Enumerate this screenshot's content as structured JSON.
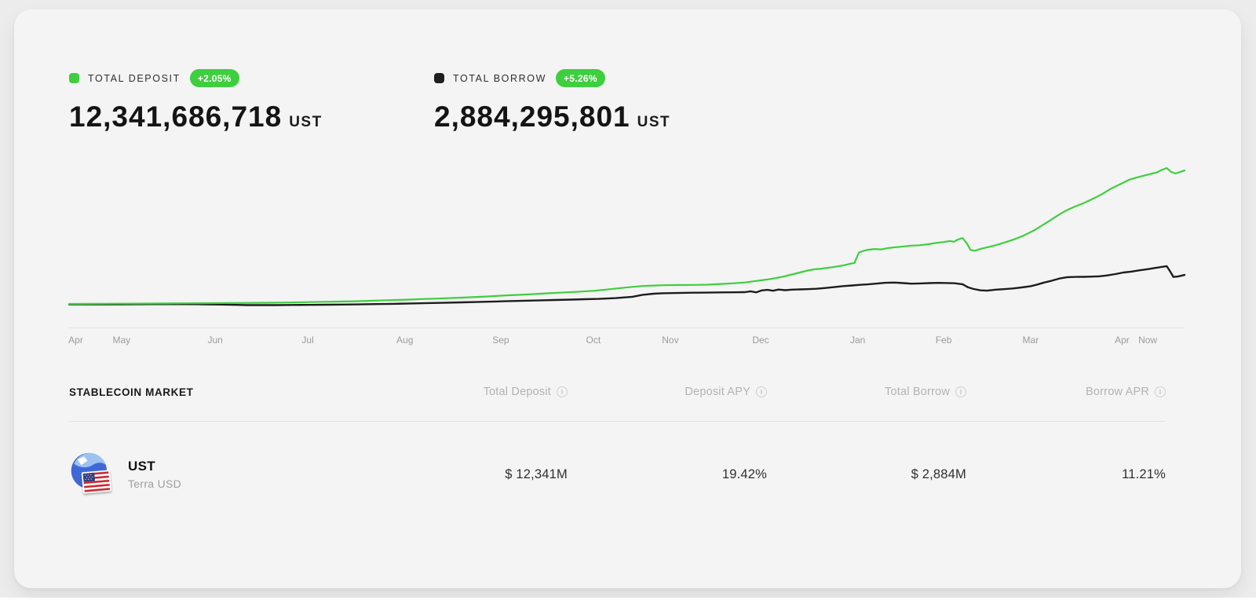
{
  "colors": {
    "green": "#3ecf3e",
    "line_black": "#1d1d1d",
    "badge_text": "#ffffff"
  },
  "header_stats": [
    {
      "legend": "TOTAL DEPOSIT",
      "change_badge": "+2.05%",
      "value": "12,341,686,718",
      "unit": "UST",
      "swatch_color": "#3ecf3e"
    },
    {
      "legend": "TOTAL BORROW",
      "change_badge": "+5.26%",
      "value": "2,884,295,801",
      "unit": "UST",
      "swatch_color": "#1f1f1f"
    }
  ],
  "chart_data": {
    "type": "line",
    "title": "Total Deposit vs Total Borrow over time",
    "y_unit": "millions of UST",
    "ylim": [
      0,
      13500
    ],
    "grid": false,
    "legend_position": "top-left",
    "x_axis_labels": [
      {
        "label": "Apr",
        "pos": 0.006
      },
      {
        "label": "May",
        "pos": 0.047
      },
      {
        "label": "Jun",
        "pos": 0.131
      },
      {
        "label": "Jul",
        "pos": 0.214
      },
      {
        "label": "Aug",
        "pos": 0.301
      },
      {
        "label": "Sep",
        "pos": 0.387
      },
      {
        "label": "Oct",
        "pos": 0.47
      },
      {
        "label": "Nov",
        "pos": 0.539
      },
      {
        "label": "Dec",
        "pos": 0.62
      },
      {
        "label": "Jan",
        "pos": 0.707
      },
      {
        "label": "Feb",
        "pos": 0.784
      },
      {
        "label": "Mar",
        "pos": 0.862
      },
      {
        "label": "Apr",
        "pos": 0.944
      },
      {
        "label": "Now",
        "pos": 0.967
      }
    ],
    "series": [
      {
        "name": "Total Deposit",
        "color": "#3ecf3e",
        "final_value_M": 12341,
        "points": [
          [
            0.0,
            255
          ],
          [
            0.015,
            260
          ],
          [
            0.03,
            268
          ],
          [
            0.044,
            275
          ],
          [
            0.06,
            285
          ],
          [
            0.075,
            292
          ],
          [
            0.09,
            300
          ],
          [
            0.105,
            310
          ],
          [
            0.12,
            318
          ],
          [
            0.131,
            326
          ],
          [
            0.145,
            338
          ],
          [
            0.16,
            350
          ],
          [
            0.175,
            365
          ],
          [
            0.19,
            380
          ],
          [
            0.205,
            400
          ],
          [
            0.214,
            420
          ],
          [
            0.228,
            445
          ],
          [
            0.242,
            470
          ],
          [
            0.256,
            500
          ],
          [
            0.27,
            540
          ],
          [
            0.285,
            590
          ],
          [
            0.302,
            640
          ],
          [
            0.315,
            690
          ],
          [
            0.33,
            740
          ],
          [
            0.345,
            800
          ],
          [
            0.36,
            860
          ],
          [
            0.375,
            930
          ],
          [
            0.387,
            1000
          ],
          [
            0.4,
            1070
          ],
          [
            0.415,
            1140
          ],
          [
            0.43,
            1220
          ],
          [
            0.445,
            1300
          ],
          [
            0.458,
            1370
          ],
          [
            0.47,
            1440
          ],
          [
            0.482,
            1560
          ],
          [
            0.495,
            1700
          ],
          [
            0.505,
            1800
          ],
          [
            0.514,
            1880
          ],
          [
            0.524,
            1920
          ],
          [
            0.533,
            1950
          ],
          [
            0.54,
            1960
          ],
          [
            0.55,
            1970
          ],
          [
            0.56,
            1980
          ],
          [
            0.572,
            2000
          ],
          [
            0.584,
            2060
          ],
          [
            0.596,
            2130
          ],
          [
            0.606,
            2200
          ],
          [
            0.613,
            2300
          ],
          [
            0.62,
            2390
          ],
          [
            0.627,
            2480
          ],
          [
            0.634,
            2600
          ],
          [
            0.641,
            2750
          ],
          [
            0.648,
            2920
          ],
          [
            0.655,
            3100
          ],
          [
            0.662,
            3280
          ],
          [
            0.668,
            3390
          ],
          [
            0.673,
            3430
          ],
          [
            0.678,
            3500
          ],
          [
            0.684,
            3580
          ],
          [
            0.69,
            3680
          ],
          [
            0.695,
            3760
          ],
          [
            0.7,
            3890
          ],
          [
            0.704,
            3960
          ],
          [
            0.708,
            4900
          ],
          [
            0.712,
            5060
          ],
          [
            0.716,
            5160
          ],
          [
            0.722,
            5230
          ],
          [
            0.728,
            5190
          ],
          [
            0.734,
            5310
          ],
          [
            0.741,
            5390
          ],
          [
            0.748,
            5460
          ],
          [
            0.755,
            5530
          ],
          [
            0.762,
            5570
          ],
          [
            0.77,
            5660
          ],
          [
            0.778,
            5790
          ],
          [
            0.784,
            5860
          ],
          [
            0.79,
            5960
          ],
          [
            0.793,
            5880
          ],
          [
            0.797,
            6090
          ],
          [
            0.801,
            6230
          ],
          [
            0.805,
            5710
          ],
          [
            0.808,
            5160
          ],
          [
            0.812,
            5070
          ],
          [
            0.818,
            5260
          ],
          [
            0.825,
            5430
          ],
          [
            0.832,
            5610
          ],
          [
            0.84,
            5860
          ],
          [
            0.848,
            6130
          ],
          [
            0.856,
            6460
          ],
          [
            0.865,
            6910
          ],
          [
            0.872,
            7350
          ],
          [
            0.88,
            7850
          ],
          [
            0.888,
            8380
          ],
          [
            0.895,
            8780
          ],
          [
            0.902,
            9080
          ],
          [
            0.91,
            9400
          ],
          [
            0.918,
            9790
          ],
          [
            0.926,
            10200
          ],
          [
            0.934,
            10690
          ],
          [
            0.942,
            11080
          ],
          [
            0.95,
            11490
          ],
          [
            0.957,
            11700
          ],
          [
            0.963,
            11860
          ],
          [
            0.969,
            12010
          ],
          [
            0.975,
            12160
          ],
          [
            0.98,
            12410
          ],
          [
            0.984,
            12560
          ],
          [
            0.988,
            12210
          ],
          [
            0.992,
            12060
          ],
          [
            0.996,
            12210
          ],
          [
            1.0,
            12341
          ]
        ]
      },
      {
        "name": "Total Borrow",
        "color": "#1d1d1d",
        "final_value_M": 2884,
        "points": [
          [
            0.0,
            220
          ],
          [
            0.015,
            215
          ],
          [
            0.03,
            210
          ],
          [
            0.044,
            218
          ],
          [
            0.06,
            226
          ],
          [
            0.075,
            232
          ],
          [
            0.09,
            238
          ],
          [
            0.105,
            232
          ],
          [
            0.12,
            224
          ],
          [
            0.135,
            196
          ],
          [
            0.15,
            168
          ],
          [
            0.16,
            150
          ],
          [
            0.172,
            146
          ],
          [
            0.185,
            152
          ],
          [
            0.2,
            162
          ],
          [
            0.214,
            170
          ],
          [
            0.23,
            182
          ],
          [
            0.245,
            196
          ],
          [
            0.26,
            214
          ],
          [
            0.275,
            240
          ],
          [
            0.29,
            262
          ],
          [
            0.302,
            285
          ],
          [
            0.318,
            318
          ],
          [
            0.335,
            356
          ],
          [
            0.352,
            398
          ],
          [
            0.368,
            438
          ],
          [
            0.382,
            475
          ],
          [
            0.39,
            495
          ],
          [
            0.405,
            530
          ],
          [
            0.42,
            570
          ],
          [
            0.435,
            610
          ],
          [
            0.45,
            650
          ],
          [
            0.462,
            680
          ],
          [
            0.475,
            710
          ],
          [
            0.49,
            780
          ],
          [
            0.505,
            900
          ],
          [
            0.514,
            1080
          ],
          [
            0.524,
            1180
          ],
          [
            0.532,
            1220
          ],
          [
            0.54,
            1240
          ],
          [
            0.55,
            1260
          ],
          [
            0.56,
            1270
          ],
          [
            0.572,
            1280
          ],
          [
            0.584,
            1300
          ],
          [
            0.596,
            1310
          ],
          [
            0.606,
            1320
          ],
          [
            0.611,
            1400
          ],
          [
            0.616,
            1300
          ],
          [
            0.621,
            1480
          ],
          [
            0.626,
            1530
          ],
          [
            0.631,
            1450
          ],
          [
            0.636,
            1560
          ],
          [
            0.642,
            1500
          ],
          [
            0.648,
            1550
          ],
          [
            0.655,
            1570
          ],
          [
            0.662,
            1590
          ],
          [
            0.67,
            1630
          ],
          [
            0.678,
            1700
          ],
          [
            0.686,
            1780
          ],
          [
            0.694,
            1870
          ],
          [
            0.702,
            1930
          ],
          [
            0.71,
            1990
          ],
          [
            0.716,
            2030
          ],
          [
            0.724,
            2100
          ],
          [
            0.732,
            2170
          ],
          [
            0.74,
            2190
          ],
          [
            0.748,
            2140
          ],
          [
            0.755,
            2090
          ],
          [
            0.763,
            2110
          ],
          [
            0.771,
            2140
          ],
          [
            0.779,
            2160
          ],
          [
            0.787,
            2150
          ],
          [
            0.794,
            2130
          ],
          [
            0.801,
            2040
          ],
          [
            0.806,
            1760
          ],
          [
            0.811,
            1610
          ],
          [
            0.817,
            1490
          ],
          [
            0.823,
            1460
          ],
          [
            0.83,
            1540
          ],
          [
            0.838,
            1590
          ],
          [
            0.846,
            1660
          ],
          [
            0.854,
            1750
          ],
          [
            0.862,
            1860
          ],
          [
            0.868,
            2010
          ],
          [
            0.874,
            2190
          ],
          [
            0.881,
            2360
          ],
          [
            0.888,
            2560
          ],
          [
            0.895,
            2680
          ],
          [
            0.903,
            2700
          ],
          [
            0.91,
            2710
          ],
          [
            0.917,
            2730
          ],
          [
            0.923,
            2750
          ],
          [
            0.93,
            2830
          ],
          [
            0.938,
            2960
          ],
          [
            0.945,
            3100
          ],
          [
            0.952,
            3180
          ],
          [
            0.959,
            3290
          ],
          [
            0.966,
            3390
          ],
          [
            0.971,
            3470
          ],
          [
            0.977,
            3570
          ],
          [
            0.981,
            3630
          ],
          [
            0.984,
            3680
          ],
          [
            0.987,
            3210
          ],
          [
            0.99,
            2700
          ],
          [
            0.994,
            2740
          ],
          [
            1.0,
            2884
          ]
        ]
      }
    ]
  },
  "table": {
    "section_title": "STABLECOIN MARKET",
    "columns": [
      "Total Deposit",
      "Deposit APY",
      "Total Borrow",
      "Borrow APR"
    ],
    "info_icon_glyph": "i",
    "rows": [
      {
        "symbol": "UST",
        "name": "Terra USD",
        "total_deposit": "$ 12,341M",
        "deposit_apy": "19.42%",
        "total_borrow": "$ 2,884M",
        "borrow_apr": "11.21%"
      }
    ]
  }
}
